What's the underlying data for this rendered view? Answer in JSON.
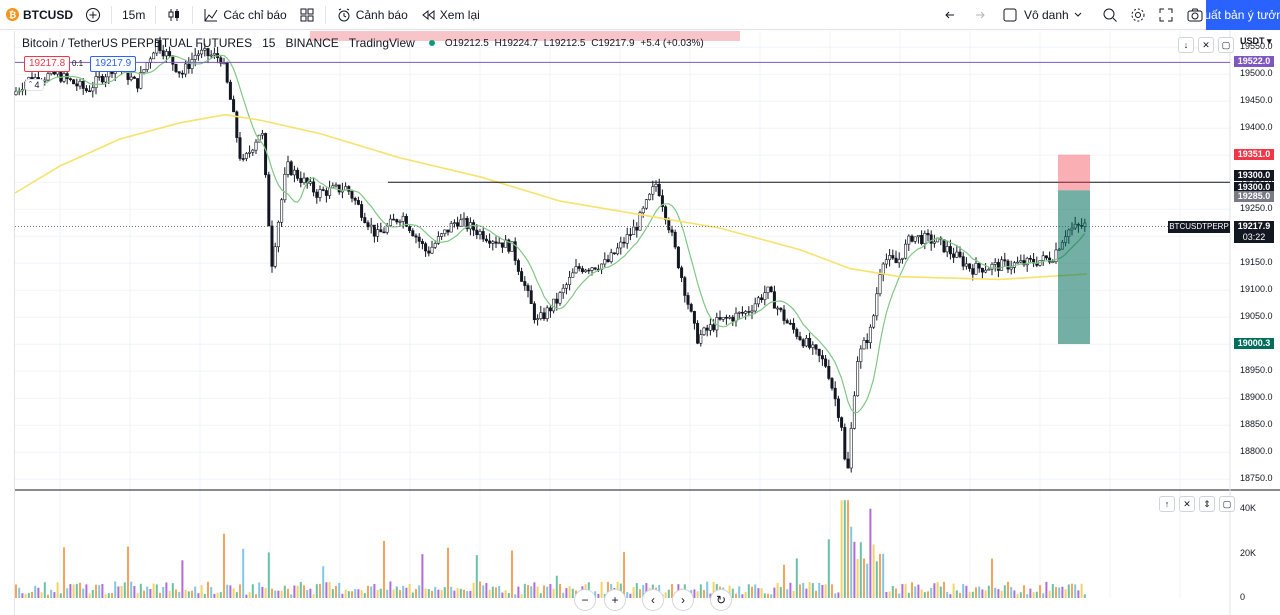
{
  "toolbar": {
    "symbol": "BTCUSD",
    "interval": "15m",
    "indicators_label": "Các chỉ báo",
    "alerts_label": "Cảnh báo",
    "replay_label": "Xem lại",
    "layout_label": "Vô danh",
    "publish_label": "Xuất bản ý tưởng"
  },
  "legend": {
    "title": "Bitcoin / TetherUS PERPETUAL FUTURES",
    "interval": "15",
    "exchange": "BINANCE",
    "source": "TradingView",
    "open": "O19212.5",
    "high": "H19224.7",
    "low": "L19212.5",
    "close": "C19217.9",
    "change": "+5.4 (+0.03%)",
    "sell_price": "19217.8",
    "spread": "0.1",
    "buy_price": "19217.9",
    "indicators_count": "4"
  },
  "price_axis": {
    "currency": "USDT",
    "ticks": [
      "19550.0",
      "19500.0",
      "19450.0",
      "19400.0",
      "19350.0",
      "19300.0",
      "19250.0",
      "19200.0",
      "19150.0",
      "19100.0",
      "19050.0",
      "19000.0",
      "18950.0",
      "18900.0",
      "18850.0",
      "18800.0",
      "18750.0"
    ],
    "tags": {
      "purple_line": "19522.0",
      "stop": "19351.0",
      "line1": "19300.0",
      "line2": "19300.0",
      "entry": "19285.0",
      "target": "19000.3",
      "last": "19217.9",
      "countdown": "03:22",
      "symbol_tag": "BTCUSDTPERP"
    },
    "colors": {
      "purple": "#7e57c2",
      "red": "#f23645",
      "green": "#006e5a",
      "black": "#131722",
      "grey": "#787b86"
    }
  },
  "volume_axis": {
    "ticks": [
      "40K",
      "20K",
      "0"
    ]
  },
  "chart_data": {
    "type": "candlestick",
    "price_range": [
      18730,
      19580
    ],
    "horizontal_lines": [
      19522.0,
      19300.0
    ],
    "position_tool": {
      "stop": 19351.0,
      "entry": 19285.0,
      "target": 19000.3
    },
    "last_price": 19217.9,
    "moving_averages": [
      "short",
      "long"
    ],
    "volume_range": [
      0,
      45000
    ]
  }
}
